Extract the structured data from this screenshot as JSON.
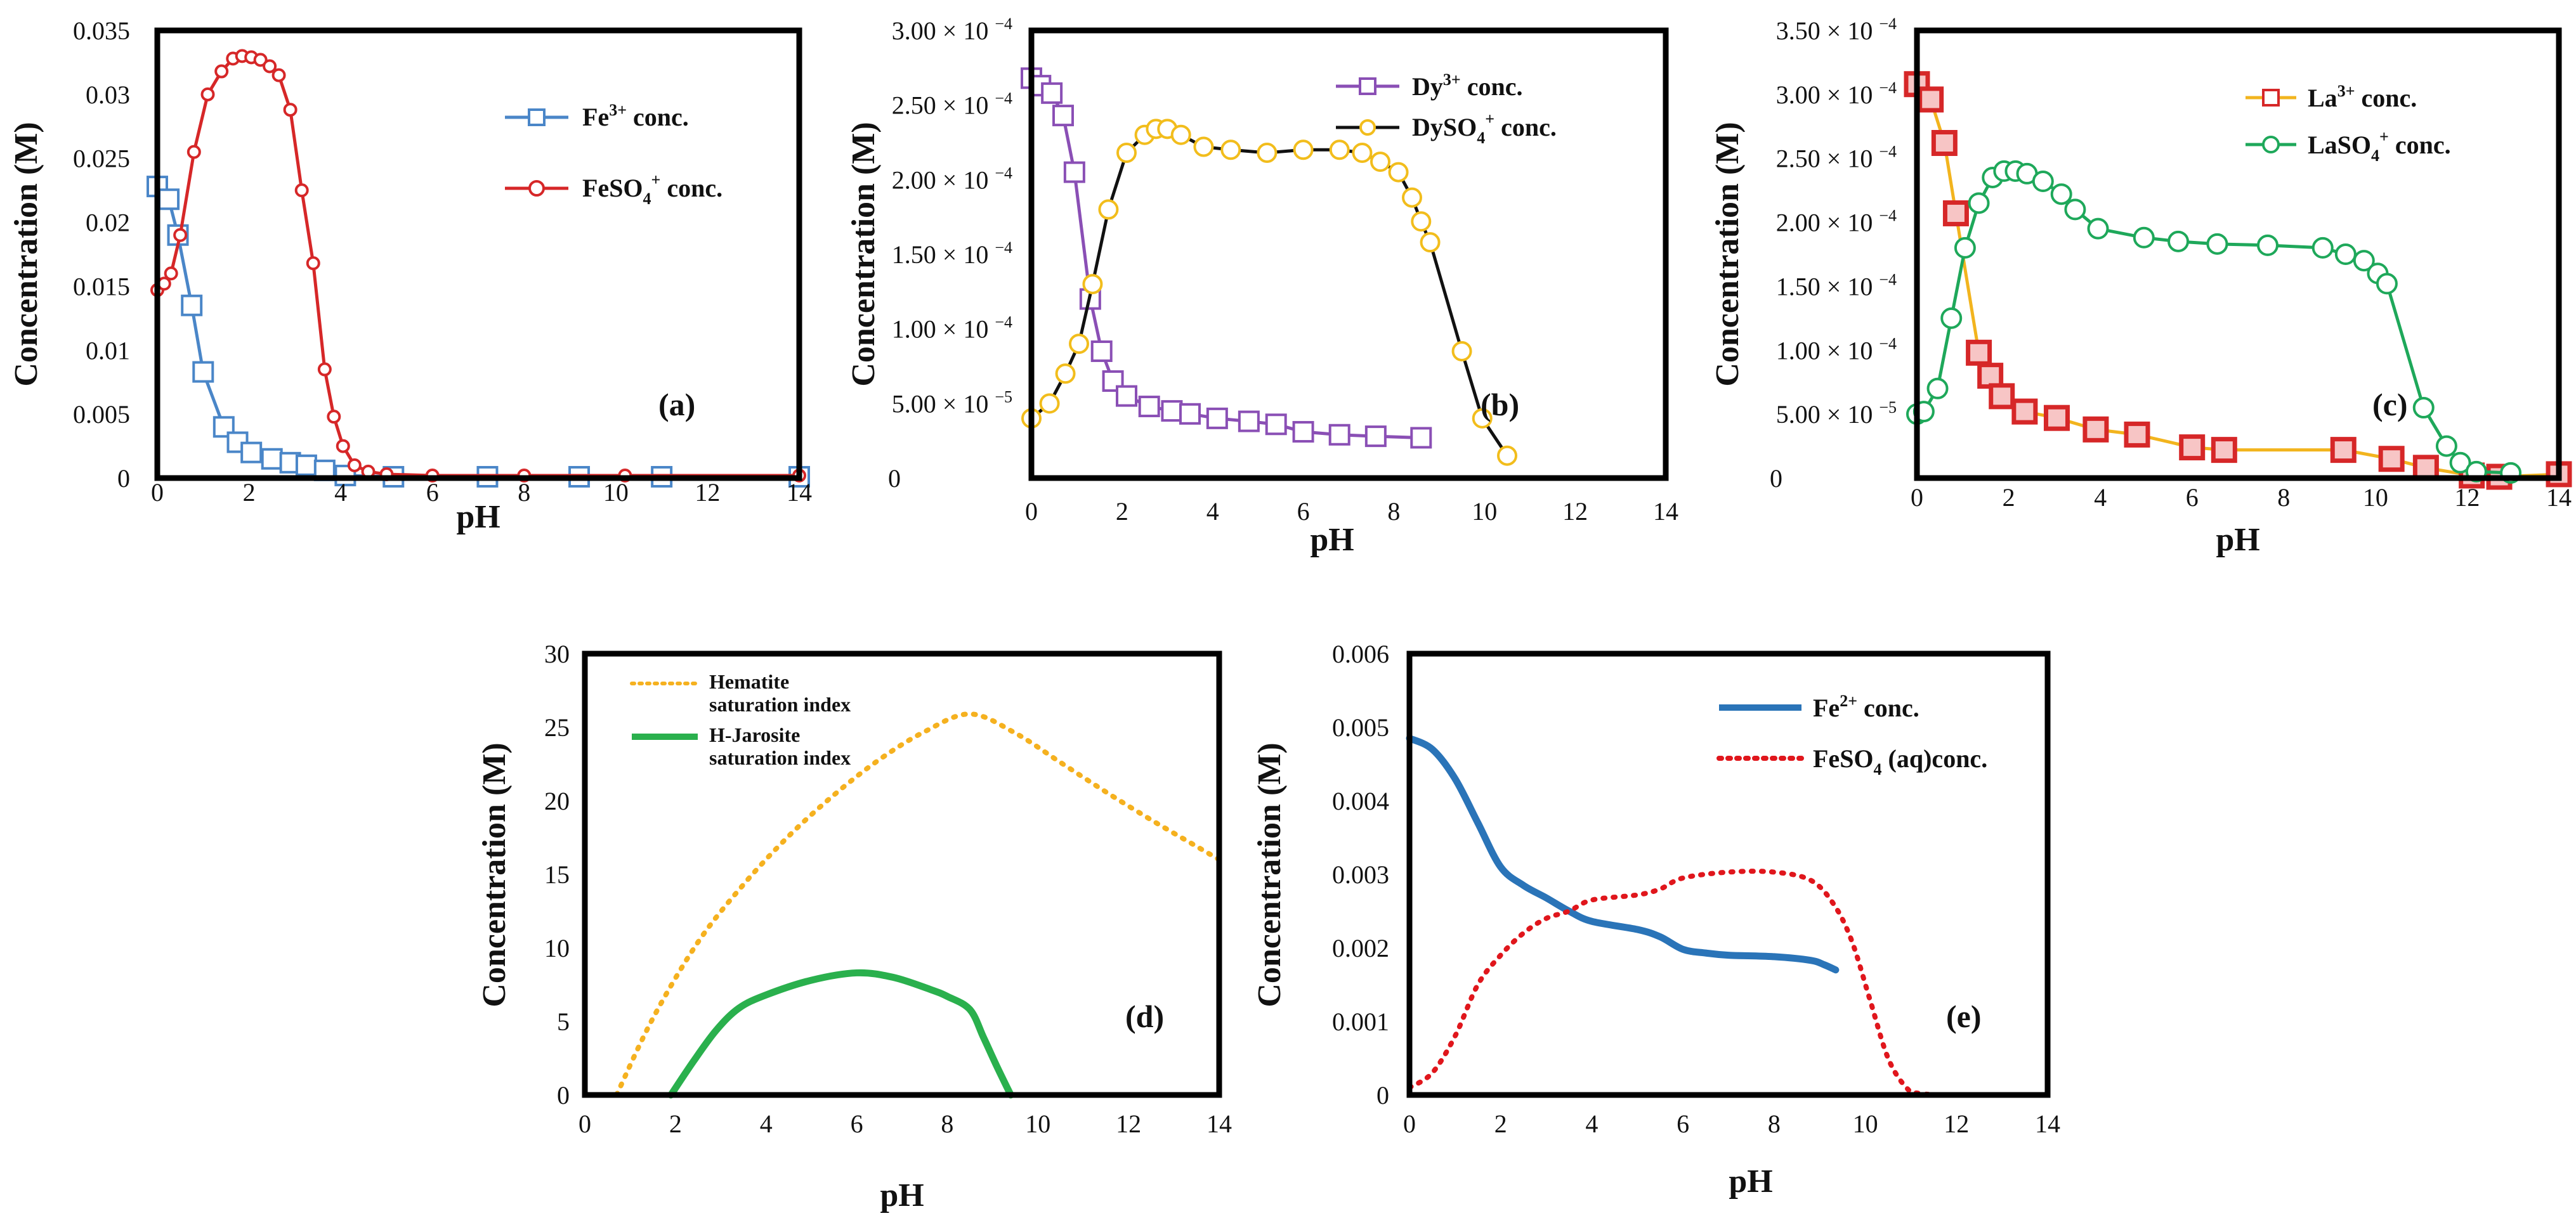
{
  "chart_data": [
    {
      "id": "a",
      "type": "line",
      "panel_label": "(a)",
      "xlabel": "pH",
      "ylabel": "Concentration (M)",
      "xlim": [
        0,
        14
      ],
      "ylim": [
        0,
        0.035
      ],
      "x_ticks": [
        0,
        2,
        4,
        6,
        8,
        10,
        12,
        14
      ],
      "y_ticks": [
        0,
        0.005,
        0.01,
        0.015,
        0.02,
        0.025,
        0.03,
        0.035
      ],
      "y_tick_labels": [
        "0",
        "0.005",
        "0.01",
        "0.015",
        "0.02",
        "0.025",
        "0.03",
        "0.035"
      ],
      "legend_position": "top-right",
      "series": [
        {
          "name": "Fe3+ conc.",
          "legend_main": "Fe",
          "legend_sup": "3+",
          "legend_tail": " conc.",
          "color": "#4a86c8",
          "marker": "square",
          "x": [
            0,
            0.25,
            0.45,
            0.75,
            1.0,
            1.45,
            1.75,
            2.05,
            2.5,
            2.9,
            3.25,
            3.65,
            4.1,
            5.15,
            7.2,
            9.2,
            11,
            14
          ],
          "y": [
            0.0228,
            0.0218,
            0.019,
            0.0135,
            0.0083,
            0.004,
            0.0028,
            0.002,
            0.0015,
            0.0012,
            0.001,
            0.0006,
            0.0002,
            0.0001,
            0.0001,
            0.0001,
            0.0001,
            0.0001
          ]
        },
        {
          "name": "FeSO4+ conc.",
          "legend_main": "FeSO",
          "legend_sub": "4",
          "legend_sup": "+",
          "legend_tail": " conc.",
          "color": "#d62728",
          "marker": "circle",
          "x": [
            0,
            0.15,
            0.3,
            0.5,
            0.8,
            1.1,
            1.4,
            1.65,
            1.85,
            2.05,
            2.25,
            2.45,
            2.65,
            2.9,
            3.15,
            3.4,
            3.65,
            3.85,
            4.05,
            4.3,
            4.6,
            5.0,
            6.0,
            8.0,
            10.2,
            14
          ],
          "y": [
            0.0147,
            0.0152,
            0.016,
            0.019,
            0.0255,
            0.03,
            0.0318,
            0.0328,
            0.033,
            0.0329,
            0.0327,
            0.0322,
            0.0315,
            0.0288,
            0.0225,
            0.0168,
            0.0085,
            0.0048,
            0.0025,
            0.001,
            0.0005,
            0.0003,
            0.0002,
            0.0002,
            0.0002,
            0.0002
          ]
        }
      ]
    },
    {
      "id": "b",
      "type": "line",
      "panel_label": "(b)",
      "xlabel": "pH",
      "ylabel": "Concentration (M)",
      "xlim": [
        0,
        14
      ],
      "ylim": [
        0,
        0.0003
      ],
      "x_ticks": [
        0,
        2,
        4,
        6,
        8,
        10,
        12,
        14
      ],
      "y_ticks": [
        0,
        5e-05,
        0.0001,
        0.00015,
        0.0002,
        0.00025,
        0.0003
      ],
      "y_tick_labels": [
        "0",
        "5.00 × 10",
        "1.00 × 10",
        "1.50 × 10",
        "2.00 × 10",
        "2.50 × 10",
        "3.00 × 10"
      ],
      "y_tick_exponents": [
        "",
        "−5",
        "−4",
        "−4",
        "−4",
        "−4",
        "−4"
      ],
      "legend_position": "top-right",
      "series": [
        {
          "name": "Dy3+ conc.",
          "legend_main": "Dy",
          "legend_sup": "3+",
          "legend_tail": " conc.",
          "color": "#8a4fb5",
          "marker": "square",
          "x": [
            0,
            0.2,
            0.45,
            0.7,
            0.95,
            1.3,
            1.55,
            1.8,
            2.1,
            2.6,
            3.1,
            3.5,
            4.1,
            4.8,
            5.4,
            6.0,
            6.8,
            7.6,
            8.6
          ],
          "y": [
            0.000268,
            0.000263,
            0.000258,
            0.000243,
            0.000205,
            0.00012,
            8.5e-05,
            6.5e-05,
            5.5e-05,
            4.8e-05,
            4.5e-05,
            4.3e-05,
            4e-05,
            3.8e-05,
            3.6e-05,
            3.1e-05,
            2.9e-05,
            2.8e-05,
            2.7e-05
          ]
        },
        {
          "name": "DySO4+ conc.",
          "legend_main": "DySO",
          "legend_sub": "4",
          "legend_sup": "+",
          "legend_tail": " conc.",
          "color": "#f2bd1c",
          "marker": "circle",
          "x": [
            0,
            0.4,
            0.75,
            1.05,
            1.35,
            1.7,
            2.1,
            2.5,
            2.75,
            3.0,
            3.3,
            3.8,
            4.4,
            5.2,
            6.0,
            6.8,
            7.3,
            7.7,
            8.1,
            8.4,
            8.6,
            8.8,
            9.5,
            9.95,
            10.5
          ],
          "y": [
            4e-05,
            5e-05,
            7e-05,
            9e-05,
            0.00013,
            0.00018,
            0.000218,
            0.00023,
            0.000234,
            0.000234,
            0.00023,
            0.000222,
            0.00022,
            0.000218,
            0.00022,
            0.00022,
            0.000218,
            0.000212,
            0.000205,
            0.000188,
            0.000172,
            0.000158,
            8.5e-05,
            4e-05,
            1.5e-05
          ]
        }
      ]
    },
    {
      "id": "c",
      "type": "line",
      "panel_label": "(c)",
      "xlabel": "pH",
      "ylabel": "Concentration (M)",
      "xlim": [
        0,
        14
      ],
      "ylim": [
        0,
        0.00035
      ],
      "x_ticks": [
        0,
        2,
        4,
        6,
        8,
        10,
        12,
        14
      ],
      "y_ticks": [
        0,
        5e-05,
        0.0001,
        0.00015,
        0.0002,
        0.00025,
        0.0003,
        0.00035
      ],
      "y_tick_labels": [
        "0",
        "5.00 × 10",
        "1.00 × 10",
        "1.50 × 10",
        "2.00 × 10",
        "2.50 × 10",
        "3.00 × 10",
        "3.50 × 10"
      ],
      "y_tick_exponents": [
        "",
        "−5",
        "−4",
        "−4",
        "−4",
        "−4",
        "−4",
        "−4"
      ],
      "legend_position": "top-right",
      "series": [
        {
          "name": "La3+ conc.",
          "legend_main": "La",
          "legend_sup": "3+",
          "legend_tail": " conc.",
          "color": "#f2b41e",
          "marker": "square-red",
          "x": [
            0,
            0.3,
            0.6,
            0.85,
            1.35,
            1.6,
            1.85,
            2.35,
            3.05,
            3.9,
            4.8,
            6.0,
            6.7,
            9.3,
            10.35,
            11.1,
            12.1,
            12.7,
            14
          ],
          "y": [
            0.000308,
            0.000296,
            0.000262,
            0.000207,
            9.8e-05,
            8e-05,
            6.4e-05,
            5.2e-05,
            4.7e-05,
            3.8e-05,
            3.4e-05,
            2.4e-05,
            2.2e-05,
            2.2e-05,
            1.5e-05,
            8e-06,
            2e-06,
            1e-06,
            3e-06
          ]
        },
        {
          "name": "LaSO4+ conc.",
          "legend_main": "LaSO",
          "legend_sub": "4",
          "legend_sup": "+",
          "legend_tail": " conc.",
          "color": "#1ea85a",
          "marker": "circle",
          "x": [
            0,
            0.15,
            0.45,
            0.75,
            1.05,
            1.35,
            1.65,
            1.9,
            2.15,
            2.4,
            2.75,
            3.15,
            3.45,
            3.95,
            4.95,
            5.7,
            6.55,
            7.65,
            8.85,
            9.35,
            9.75,
            10.05,
            10.25,
            11.05,
            11.55,
            11.85,
            12.2,
            12.95
          ],
          "y": [
            5e-05,
            5.2e-05,
            7e-05,
            0.000125,
            0.00018,
            0.000215,
            0.000235,
            0.00024,
            0.00024,
            0.000238,
            0.000232,
            0.000222,
            0.00021,
            0.000195,
            0.000188,
            0.000185,
            0.000183,
            0.000182,
            0.00018,
            0.000175,
            0.00017,
            0.00016,
            0.000152,
            5.5e-05,
            2.5e-05,
            1.2e-05,
            5e-06,
            4e-06
          ]
        }
      ]
    },
    {
      "id": "d",
      "type": "line",
      "panel_label": "(d)",
      "xlabel": "pH",
      "ylabel": "Concentration (M)",
      "xlim": [
        0,
        14
      ],
      "ylim": [
        0,
        30
      ],
      "x_ticks": [
        0,
        2,
        4,
        6,
        8,
        10,
        12,
        14
      ],
      "y_ticks": [
        0,
        5,
        10,
        15,
        20,
        25,
        30
      ],
      "y_tick_labels": [
        "0",
        "5",
        "10",
        "15",
        "20",
        "25",
        "30"
      ],
      "legend_position": "top-left",
      "series": [
        {
          "name": "Hematite saturation index",
          "legend_lines": [
            "Hematite",
            "saturation index"
          ],
          "color": "#f5b11f",
          "style": "dotted",
          "x": [
            0.7,
            1.5,
            2.5,
            3.5,
            4.5,
            5.5,
            6.5,
            7.5,
            8.5,
            9.5,
            10.5,
            11.5,
            12.5,
            13.5,
            14
          ],
          "y": [
            0,
            5.2,
            10.4,
            14.3,
            17.6,
            20.4,
            22.8,
            24.7,
            25.9,
            24.6,
            22.6,
            20.6,
            18.7,
            16.9,
            16
          ]
        },
        {
          "name": "H-Jarosite saturation index",
          "legend_lines": [
            "H-Jarosite",
            "saturation index"
          ],
          "color": "#2ab04d",
          "style": "solid",
          "x": [
            1.9,
            2.4,
            2.9,
            3.4,
            4.0,
            5.0,
            6.0,
            6.8,
            7.6,
            8.0,
            8.5,
            8.8,
            9.1,
            9.4
          ],
          "y": [
            0,
            2.3,
            4.4,
            5.9,
            6.8,
            7.8,
            8.3,
            8.0,
            7.2,
            6.7,
            5.8,
            3.9,
            1.9,
            0
          ]
        }
      ]
    },
    {
      "id": "e",
      "type": "line",
      "panel_label": "(e)",
      "xlabel": "pH",
      "ylabel": "Concentration (M)",
      "xlim": [
        0,
        14
      ],
      "ylim": [
        0,
        0.006
      ],
      "x_ticks": [
        0,
        2,
        4,
        6,
        8,
        10,
        12,
        14
      ],
      "y_ticks": [
        0,
        0.001,
        0.002,
        0.003,
        0.004,
        0.005,
        0.006
      ],
      "y_tick_labels": [
        "0",
        "0.001",
        "0.002",
        "0.003",
        "0.004",
        "0.005",
        "0.006"
      ],
      "legend_position": "top-right",
      "series": [
        {
          "name": "Fe2+ conc.",
          "legend_main": "Fe",
          "legend_sup": "2+",
          "legend_tail": " conc.",
          "color": "#2a74b8",
          "style": "solid",
          "x": [
            0,
            0.5,
            1.0,
            1.5,
            2.0,
            2.5,
            3.0,
            3.5,
            4.0,
            5.0,
            5.5,
            6.0,
            6.5,
            7.0,
            8.0,
            8.8,
            9.1,
            9.35
          ],
          "y": [
            0.00485,
            0.0047,
            0.0043,
            0.0037,
            0.0031,
            0.00285,
            0.00268,
            0.0025,
            0.00236,
            0.00225,
            0.00215,
            0.00198,
            0.00193,
            0.0019,
            0.00188,
            0.00183,
            0.00177,
            0.0017
          ]
        },
        {
          "name": "FeSO4 (aq)conc.",
          "legend_main": "FeSO",
          "legend_sub": "4",
          "legend_tail": " (aq)conc.",
          "color": "#e0161c",
          "style": "dotted",
          "x": [
            0,
            0.5,
            1.0,
            1.5,
            2.0,
            2.5,
            3.0,
            3.5,
            4.0,
            5.0,
            5.5,
            6.0,
            7.0,
            8.0,
            8.8,
            9.3,
            9.7,
            10.1,
            10.5,
            10.9,
            11.2,
            12.0,
            14
          ],
          "y": [
            0.0001,
            0.0003,
            0.0008,
            0.0015,
            0.0019,
            0.0022,
            0.0024,
            0.0025,
            0.00265,
            0.00272,
            0.0028,
            0.00295,
            0.00303,
            0.00303,
            0.00292,
            0.0026,
            0.0021,
            0.0013,
            0.0005,
            0.0001,
            2e-05,
            0,
            0
          ]
        }
      ]
    }
  ]
}
